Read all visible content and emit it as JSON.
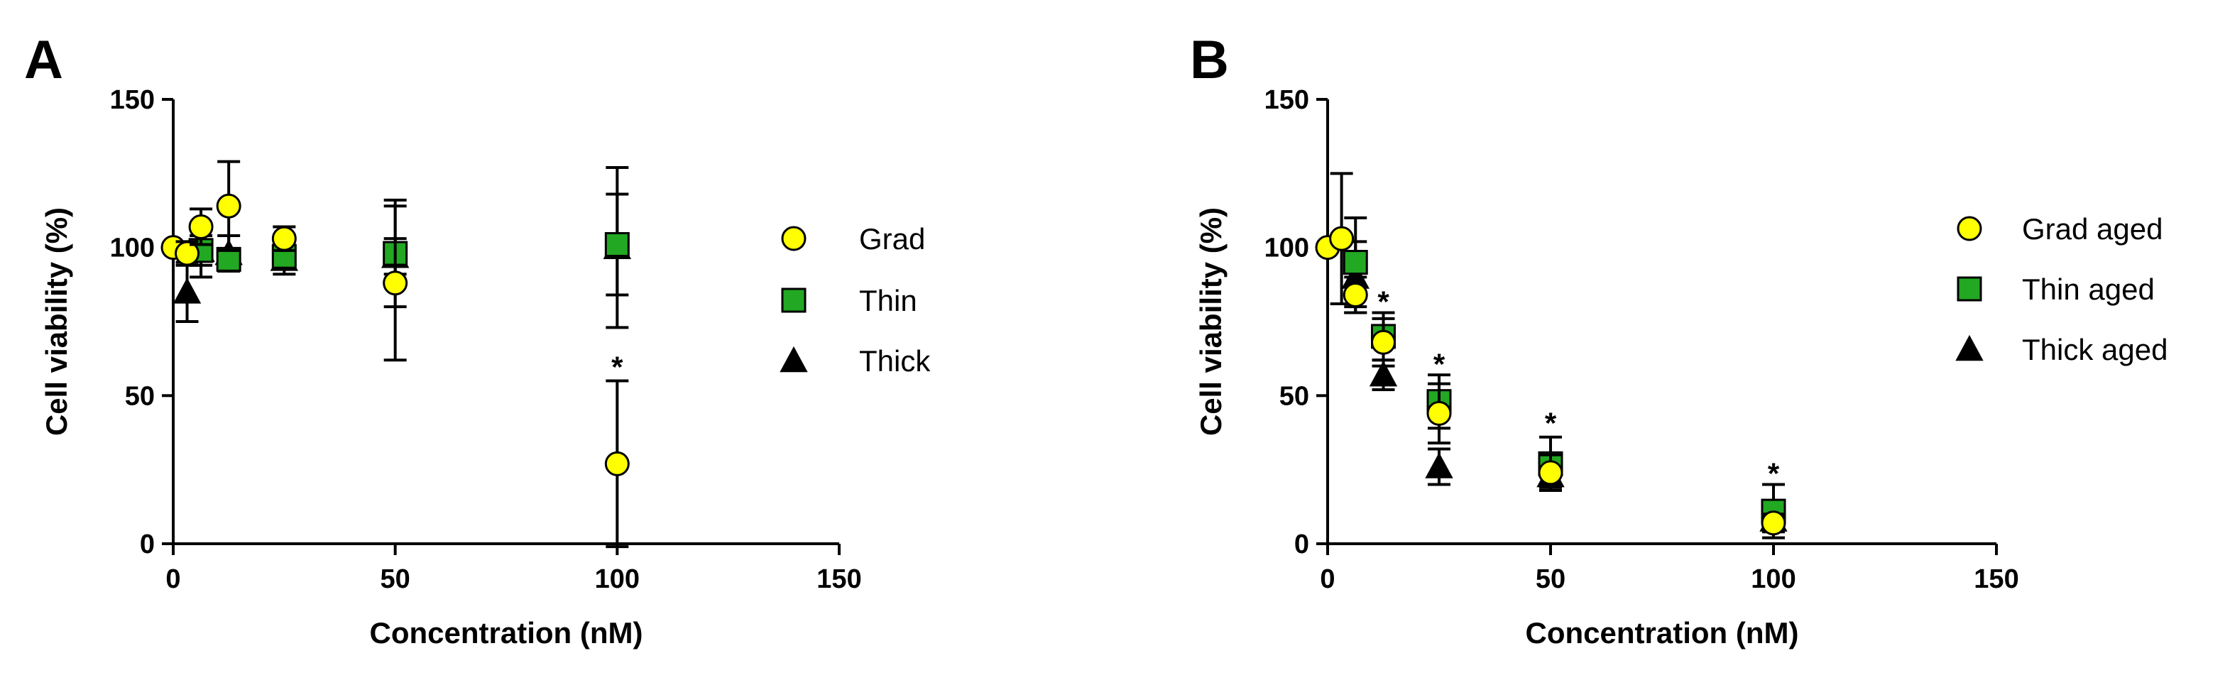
{
  "chart_data": [
    {
      "type": "scatter",
      "panel_label": "A",
      "xlabel": "Concentration (nM)",
      "ylabel": "Cell viability (%)",
      "xlim": [
        0,
        150
      ],
      "ylim": [
        0,
        150
      ],
      "xticks": [
        "0",
        "50",
        "100",
        "150"
      ],
      "yticks": [
        "0",
        "50",
        "100",
        "150"
      ],
      "legend_position": "right",
      "series": [
        {
          "name": "Grad",
          "marker": "circle",
          "color": "#FFFF00",
          "points": [
            {
              "x": 0,
              "y": 100,
              "err": 0
            },
            {
              "x": 3.125,
              "y": 98,
              "err": 4
            },
            {
              "x": 6.25,
              "y": 107,
              "err": 6
            },
            {
              "x": 12.5,
              "y": 114,
              "err": 15
            },
            {
              "x": 25,
              "y": 103,
              "err": 4
            },
            {
              "x": 50,
              "y": 88,
              "err": 26
            },
            {
              "x": 100,
              "y": 27,
              "err": 28
            }
          ]
        },
        {
          "name": "Thin",
          "marker": "square",
          "color": "#22A822",
          "points": [
            {
              "x": 6.25,
              "y": 99,
              "err": 5
            },
            {
              "x": 12.5,
              "y": 96,
              "err": 3
            },
            {
              "x": 25,
              "y": 97,
              "err": 3
            },
            {
              "x": 50,
              "y": 98,
              "err": 18
            },
            {
              "x": 100,
              "y": 101,
              "err": 17
            }
          ]
        },
        {
          "name": "Thick",
          "marker": "triangle",
          "color": "#000000",
          "points": [
            {
              "x": 3.125,
              "y": 85,
              "err": 10
            },
            {
              "x": 6.25,
              "y": 99,
              "err": 9
            },
            {
              "x": 12.5,
              "y": 98,
              "err": 6
            },
            {
              "x": 25,
              "y": 96,
              "err": 5
            },
            {
              "x": 50,
              "y": 97,
              "err": 6
            },
            {
              "x": 100,
              "y": 100,
              "err": 27
            }
          ]
        }
      ],
      "annotations": [
        {
          "text": "*",
          "x": 100,
          "y": 61
        }
      ]
    },
    {
      "type": "scatter",
      "panel_label": "B",
      "xlabel": "Concentration (nM)",
      "ylabel": "Cell viability (%)",
      "xlim": [
        0,
        150
      ],
      "ylim": [
        0,
        150
      ],
      "xticks": [
        "0",
        "50",
        "100",
        "150"
      ],
      "yticks": [
        "0",
        "50",
        "100",
        "150"
      ],
      "legend_position": "right",
      "series": [
        {
          "name": "Grad aged",
          "marker": "circle",
          "color": "#FFFF00",
          "points": [
            {
              "x": 0,
              "y": 100,
              "err": 0
            },
            {
              "x": 3.125,
              "y": 103,
              "err": 22
            },
            {
              "x": 6.25,
              "y": 84,
              "err": 6
            },
            {
              "x": 12.5,
              "y": 68,
              "err": 8
            },
            {
              "x": 25,
              "y": 44,
              "err": 10
            },
            {
              "x": 50,
              "y": 24,
              "err": 6
            },
            {
              "x": 100,
              "y": 7,
              "err": 3
            }
          ]
        },
        {
          "name": "Thin aged",
          "marker": "square",
          "color": "#22A822",
          "points": [
            {
              "x": 6.25,
              "y": 95,
              "err": 15
            },
            {
              "x": 12.5,
              "y": 70,
              "err": 8
            },
            {
              "x": 25,
              "y": 48,
              "err": 9
            },
            {
              "x": 50,
              "y": 27,
              "err": 9
            },
            {
              "x": 100,
              "y": 11,
              "err": 9
            }
          ]
        },
        {
          "name": "Thick aged",
          "marker": "triangle",
          "color": "#000000",
          "points": [
            {
              "x": 6.25,
              "y": 90,
              "err": 12
            },
            {
              "x": 12.5,
              "y": 57,
              "err": 5
            },
            {
              "x": 25,
              "y": 26,
              "err": 6
            },
            {
              "x": 50,
              "y": 23,
              "err": 4
            },
            {
              "x": 100,
              "y": 8,
              "err": 3
            }
          ]
        }
      ],
      "annotations": [
        {
          "text": "*",
          "x": 12.5,
          "y": 83
        },
        {
          "text": "*",
          "x": 25,
          "y": 62
        },
        {
          "text": "*",
          "x": 50,
          "y": 42
        },
        {
          "text": "*",
          "x": 100,
          "y": 25
        }
      ]
    }
  ]
}
